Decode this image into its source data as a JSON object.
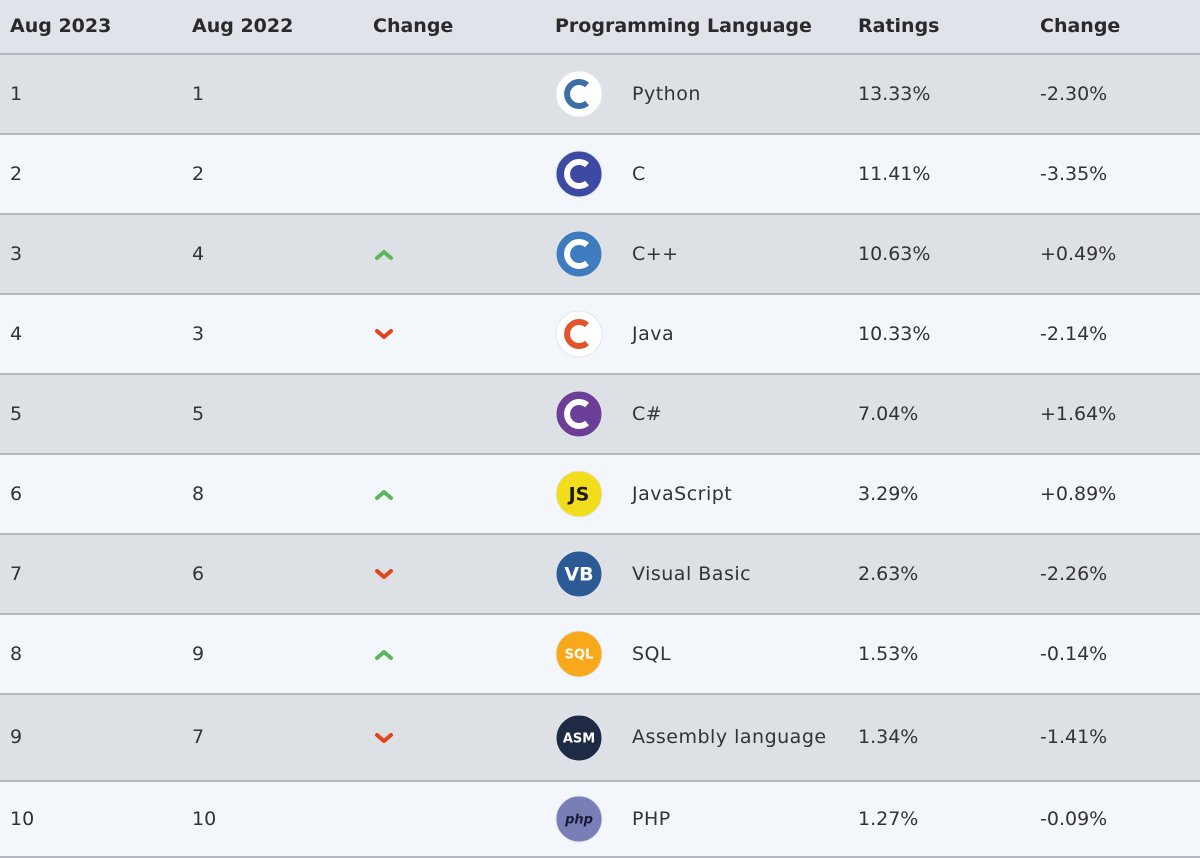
{
  "table": {
    "header": [
      "Aug 2023",
      "Aug 2022",
      "Change",
      "Programming Language",
      "Ratings",
      "Change"
    ],
    "rows": [
      {
        "rank_2023": 1,
        "rank_2022": 1,
        "language": "Python",
        "ratings": "13.33%",
        "change": "-2.30%",
        "logo": {
          "color": "#ffffff",
          "accent": "#3b6fa5"
        }
      },
      {
        "rank_2023": 2,
        "rank_2022": 2,
        "language": "C",
        "ratings": "11.41%",
        "change": "-3.35%",
        "logo": {
          "color": "#3c4aa3",
          "accent": "#ffffff"
        }
      },
      {
        "rank_2023": 3,
        "rank_2022": 4,
        "language": "C++",
        "ratings": "10.63%",
        "change": "+0.49%",
        "logo": {
          "color": "#3f7cbf",
          "accent": "#ffffff"
        }
      },
      {
        "rank_2023": 4,
        "rank_2022": 3,
        "language": "Java",
        "ratings": "10.33%",
        "change": "-2.14%",
        "logo": {
          "color": "#ffffff",
          "accent": "#e2542a"
        }
      },
      {
        "rank_2023": 5,
        "rank_2022": 5,
        "language": "C#",
        "ratings": "7.04%",
        "change": "+1.64%",
        "logo": {
          "color": "#6b3f98",
          "accent": "#ffffff"
        }
      },
      {
        "rank_2023": 6,
        "rank_2022": 8,
        "language": "JavaScript",
        "ratings": "3.29%",
        "change": "+0.89%",
        "logo": {
          "color": "#f2dd1c",
          "accent": "#1a1a1a",
          "text": "JS"
        }
      },
      {
        "rank_2023": 7,
        "rank_2022": 6,
        "language": "Visual Basic",
        "ratings": "2.63%",
        "change": "-2.26%",
        "logo": {
          "color": "#2c5a94",
          "accent": "#ffffff",
          "text": "VB"
        }
      },
      {
        "rank_2023": 8,
        "rank_2022": 9,
        "language": "SQL",
        "ratings": "1.53%",
        "change": "-0.14%",
        "logo": {
          "color": "#f7a91b",
          "accent": "#ffffff",
          "text": "SQL"
        }
      },
      {
        "rank_2023": 9,
        "rank_2022": 7,
        "language": "Assembly language",
        "ratings": "1.34%",
        "change": "-1.41%",
        "logo": {
          "color": "#1f2b45",
          "accent": "#ffffff",
          "text": "ASM"
        }
      },
      {
        "rank_2023": 10,
        "rank_2022": 10,
        "language": "PHP",
        "ratings": "1.27%",
        "change": "-0.09%",
        "logo": {
          "color": "#7a7eb6",
          "accent": "#1a1a3a",
          "text": "php"
        }
      }
    ],
    "up_color": "#5cb85c",
    "down_color": "#e0441c"
  }
}
